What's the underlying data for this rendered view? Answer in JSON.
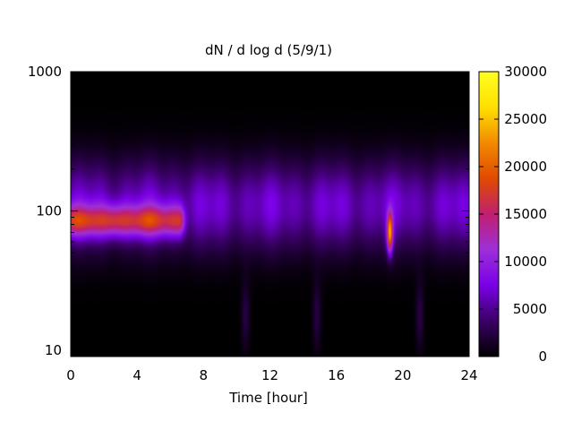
{
  "chart_data": {
    "type": "heatmap",
    "title": "dN / d log d (5/9/1)",
    "xlabel": "Time [hour]",
    "ylabel": "",
    "xlim": [
      0,
      24
    ],
    "ylim": [
      9,
      1000
    ],
    "y_scale": "log",
    "x_ticks": [
      0,
      4,
      8,
      12,
      16,
      20,
      24
    ],
    "x_tick_labels": [
      "0",
      "4",
      "8",
      "12",
      "16",
      "20",
      "24"
    ],
    "y_ticks": [
      10,
      100,
      1000
    ],
    "y_tick_labels": [
      "10",
      "100",
      "1000"
    ],
    "colorbar": {
      "range": [
        0,
        30000
      ],
      "ticks": [
        0,
        5000,
        10000,
        15000,
        20000,
        25000,
        30000
      ],
      "tick_labels": [
        "0",
        "5000",
        "10000",
        "15000",
        "20000",
        "25000",
        "30000"
      ],
      "palette": [
        "#000000",
        "#3a0066",
        "#7a00e6",
        "#9d2fd9",
        "#c0206f",
        "#e04a00",
        "#f28a00",
        "#ffe000",
        "#ffff20"
      ]
    },
    "features": [
      {
        "kind": "band",
        "x_start": 0,
        "x_end": 6.5,
        "y_center": 85,
        "peak_value": 17000
      },
      {
        "kind": "spike",
        "x_center": 19.2,
        "y_center": 70,
        "peak_value": 19000
      },
      {
        "kind": "background",
        "y_center": 110,
        "value": 7500
      }
    ]
  }
}
